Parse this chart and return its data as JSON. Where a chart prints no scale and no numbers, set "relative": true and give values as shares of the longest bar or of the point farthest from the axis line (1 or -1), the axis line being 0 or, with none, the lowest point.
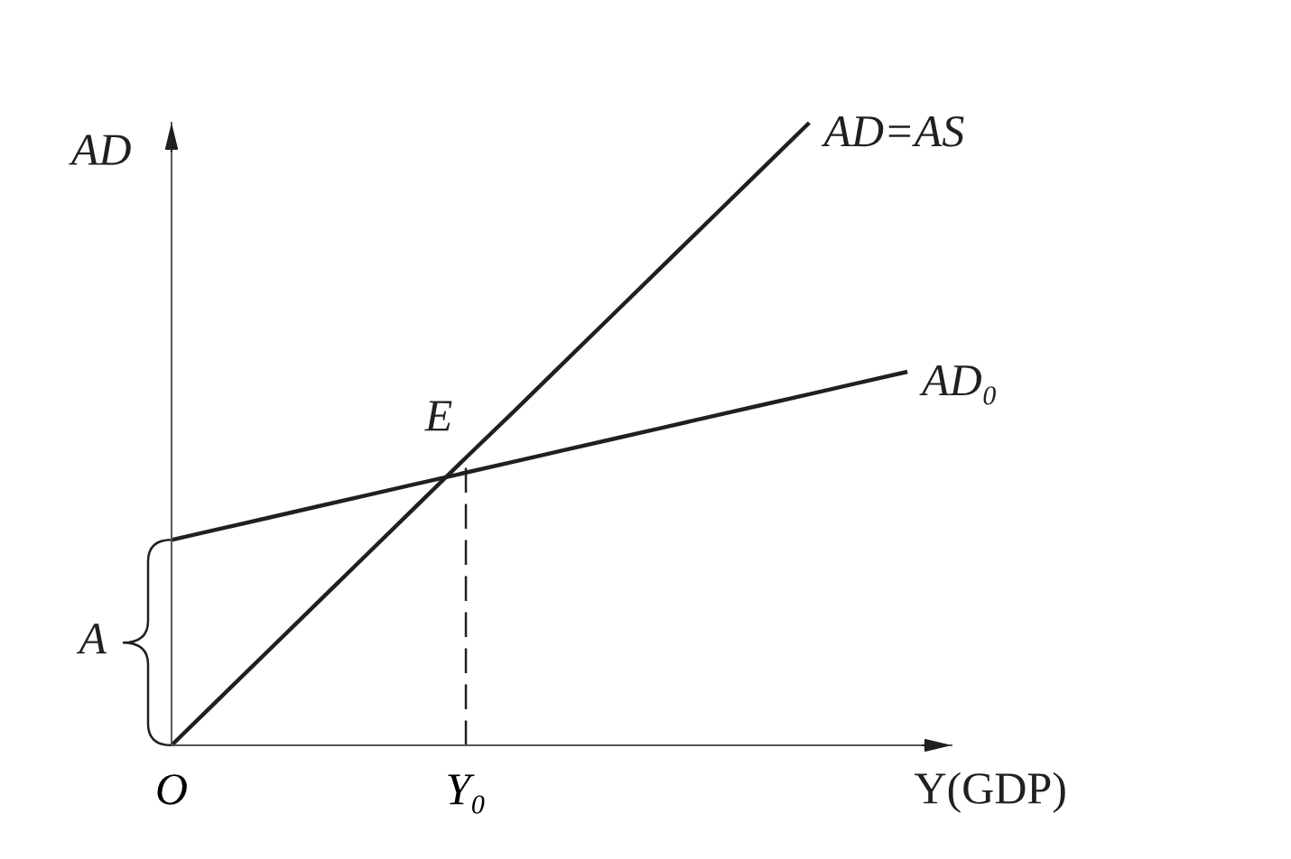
{
  "chart_data": {
    "type": "line",
    "relative": true,
    "xlabel": "Y(GDP)",
    "ylabel": "AD",
    "tick_labels": "x",
    "line_style": "solid",
    "marker": "none",
    "categories": [
      "O",
      null,
      null,
      null,
      null,
      null,
      "Y₀",
      null,
      null,
      null,
      null,
      null,
      null,
      null,
      null,
      null
    ],
    "series": [
      {
        "name": "AD=AS",
        "color": "#231f20",
        "values": [
          0,
          0.077,
          0.154,
          0.231,
          0.308,
          0.385,
          0.462,
          0.538,
          0.615,
          0.692,
          0.769,
          0.846,
          0.923,
          1,
          null,
          null
        ]
      },
      {
        "name": "AD₀",
        "color": "#231f20",
        "values": [
          0.33,
          0.348,
          0.366,
          0.384,
          0.402,
          0.42,
          0.438,
          0.456,
          0.474,
          0.492,
          0.51,
          0.528,
          0.546,
          0.564,
          0.582,
          0.6
        ]
      }
    ],
    "ref_lines": [
      {
        "axis": "x",
        "value": "Y₀",
        "line_style": "dashed",
        "color": "#231f20"
      }
    ],
    "annotations": [
      {
        "text": "E",
        "x": "Y₀",
        "y": 0.462
      },
      {
        "text": "A",
        "x": "O",
        "y": 0.33
      }
    ]
  }
}
